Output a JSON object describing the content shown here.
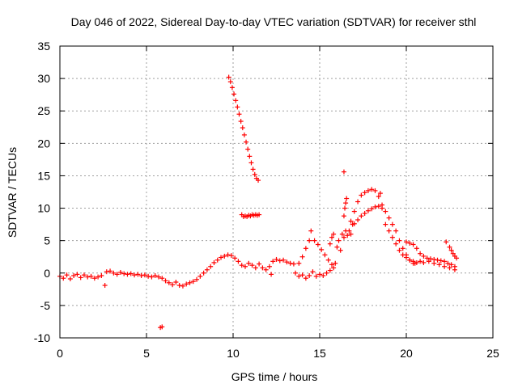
{
  "chart_data": {
    "type": "scatter",
    "title": "Day 046 of 2022, Sidereal Day-to-day VTEC variation (SDTVAR) for receiver sthl",
    "xlabel": "GPS time / hours",
    "ylabel": "SDTVAR / TECUs",
    "xlim": [
      0,
      25
    ],
    "ylim": [
      -10,
      35
    ],
    "xticks": [
      0,
      5,
      10,
      15,
      20,
      25
    ],
    "yticks": [
      -10,
      -5,
      0,
      5,
      10,
      15,
      20,
      25,
      30,
      35
    ],
    "grid": true,
    "marker": "+",
    "series_color": "#ff0000",
    "series": [
      {
        "name": "SDTVAR",
        "points": [
          [
            0.0,
            -0.5
          ],
          [
            0.2,
            -0.8
          ],
          [
            0.4,
            -0.3
          ],
          [
            0.6,
            -0.9
          ],
          [
            0.8,
            -0.4
          ],
          [
            1.0,
            -0.2
          ],
          [
            1.2,
            -0.7
          ],
          [
            1.4,
            -0.3
          ],
          [
            1.6,
            -0.6
          ],
          [
            1.8,
            -0.5
          ],
          [
            2.0,
            -0.8
          ],
          [
            2.2,
            -0.6
          ],
          [
            2.4,
            -0.4
          ],
          [
            2.6,
            -1.9
          ],
          [
            2.7,
            0.2
          ],
          [
            2.9,
            0.3
          ],
          [
            3.1,
            0.0
          ],
          [
            3.3,
            -0.2
          ],
          [
            3.5,
            0.1
          ],
          [
            3.7,
            -0.1
          ],
          [
            3.9,
            -0.2
          ],
          [
            4.1,
            -0.1
          ],
          [
            4.3,
            -0.3
          ],
          [
            4.5,
            -0.2
          ],
          [
            4.7,
            -0.4
          ],
          [
            4.9,
            -0.3
          ],
          [
            5.1,
            -0.5
          ],
          [
            5.3,
            -0.6
          ],
          [
            5.5,
            -0.4
          ],
          [
            5.7,
            -0.6
          ],
          [
            5.9,
            -0.8
          ],
          [
            6.1,
            -1.2
          ],
          [
            6.3,
            -1.5
          ],
          [
            6.5,
            -1.8
          ],
          [
            6.7,
            -1.4
          ],
          [
            6.9,
            -1.9
          ],
          [
            7.1,
            -2.0
          ],
          [
            7.3,
            -1.7
          ],
          [
            7.5,
            -1.5
          ],
          [
            7.7,
            -1.3
          ],
          [
            5.8,
            -8.4
          ],
          [
            5.9,
            -8.3
          ],
          [
            7.9,
            -1.0
          ],
          [
            8.1,
            -0.5
          ],
          [
            8.3,
            0.0
          ],
          [
            8.5,
            0.5
          ],
          [
            8.7,
            1.0
          ],
          [
            8.9,
            1.6
          ],
          [
            9.1,
            2.0
          ],
          [
            9.3,
            2.4
          ],
          [
            9.5,
            2.6
          ],
          [
            9.7,
            2.8
          ],
          [
            9.9,
            2.7
          ],
          [
            10.1,
            2.3
          ],
          [
            10.3,
            1.8
          ],
          [
            10.5,
            1.2
          ],
          [
            10.7,
            1.0
          ],
          [
            10.9,
            1.5
          ],
          [
            11.1,
            1.2
          ],
          [
            11.3,
            0.8
          ],
          [
            11.5,
            1.4
          ],
          [
            11.7,
            0.8
          ],
          [
            11.9,
            0.5
          ],
          [
            12.1,
            1.0
          ],
          [
            12.3,
            1.8
          ],
          [
            12.5,
            2.1
          ],
          [
            12.7,
            1.9
          ],
          [
            12.9,
            2.0
          ],
          [
            13.1,
            1.7
          ],
          [
            13.3,
            1.5
          ],
          [
            13.5,
            1.4
          ],
          [
            12.2,
            -0.2
          ],
          [
            9.75,
            30.2
          ],
          [
            9.85,
            29.5
          ],
          [
            9.95,
            28.6
          ],
          [
            10.05,
            27.6
          ],
          [
            10.15,
            26.6
          ],
          [
            10.25,
            25.6
          ],
          [
            10.35,
            24.5
          ],
          [
            10.45,
            23.4
          ],
          [
            10.55,
            22.4
          ],
          [
            10.65,
            21.3
          ],
          [
            10.75,
            20.2
          ],
          [
            10.85,
            19.1
          ],
          [
            10.95,
            18.0
          ],
          [
            11.05,
            17.0
          ],
          [
            11.15,
            16.0
          ],
          [
            11.25,
            15.2
          ],
          [
            11.35,
            14.6
          ],
          [
            11.45,
            14.3
          ],
          [
            10.5,
            9.0
          ],
          [
            10.6,
            8.7
          ],
          [
            10.7,
            8.8
          ],
          [
            10.8,
            8.7
          ],
          [
            10.9,
            8.9
          ],
          [
            11.0,
            8.8
          ],
          [
            11.1,
            9.0
          ],
          [
            11.2,
            8.9
          ],
          [
            11.3,
            9.0
          ],
          [
            11.4,
            8.9
          ],
          [
            11.5,
            9.0
          ],
          [
            13.6,
            0.0
          ],
          [
            13.8,
            -0.5
          ],
          [
            14.0,
            -0.3
          ],
          [
            14.2,
            -0.8
          ],
          [
            14.4,
            -0.4
          ],
          [
            14.6,
            0.2
          ],
          [
            14.8,
            -0.5
          ],
          [
            15.0,
            -0.2
          ],
          [
            15.2,
            -0.4
          ],
          [
            15.4,
            0.0
          ],
          [
            15.6,
            0.4
          ],
          [
            15.8,
            0.8
          ],
          [
            13.8,
            1.5
          ],
          [
            14.0,
            2.5
          ],
          [
            14.2,
            3.8
          ],
          [
            14.4,
            5.0
          ],
          [
            14.5,
            6.5
          ],
          [
            14.7,
            5.0
          ],
          [
            14.9,
            4.4
          ],
          [
            15.1,
            3.6
          ],
          [
            15.3,
            2.8
          ],
          [
            15.5,
            2.0
          ],
          [
            15.7,
            1.3
          ],
          [
            15.9,
            1.5
          ],
          [
            15.6,
            4.5
          ],
          [
            15.7,
            5.5
          ],
          [
            15.8,
            6.0
          ],
          [
            16.0,
            4.0
          ],
          [
            16.1,
            5.0
          ],
          [
            16.2,
            3.5
          ],
          [
            16.3,
            6.0
          ],
          [
            16.4,
            5.5
          ],
          [
            16.5,
            6.5
          ],
          [
            16.6,
            5.8
          ],
          [
            16.7,
            6.5
          ],
          [
            16.8,
            6.0
          ],
          [
            16.9,
            7.5
          ],
          [
            16.4,
            8.8
          ],
          [
            16.45,
            10.0
          ],
          [
            16.5,
            10.8
          ],
          [
            16.55,
            11.5
          ],
          [
            16.4,
            15.6
          ],
          [
            16.8,
            8.0
          ],
          [
            17.0,
            9.5
          ],
          [
            17.2,
            11.0
          ],
          [
            17.4,
            12.0
          ],
          [
            17.6,
            12.4
          ],
          [
            17.8,
            12.7
          ],
          [
            18.0,
            12.9
          ],
          [
            18.2,
            12.7
          ],
          [
            18.4,
            11.8
          ],
          [
            18.6,
            10.5
          ],
          [
            18.8,
            9.5
          ],
          [
            19.0,
            8.5
          ],
          [
            19.2,
            7.5
          ],
          [
            19.4,
            6.5
          ],
          [
            19.6,
            5.0
          ],
          [
            19.8,
            3.8
          ],
          [
            20.0,
            2.8
          ],
          [
            20.2,
            2.0
          ],
          [
            20.4,
            1.5
          ],
          [
            17.0,
            7.6
          ],
          [
            17.2,
            8.2
          ],
          [
            17.4,
            8.8
          ],
          [
            17.6,
            9.2
          ],
          [
            17.8,
            9.6
          ],
          [
            18.0,
            9.9
          ],
          [
            18.2,
            10.2
          ],
          [
            18.4,
            10.3
          ],
          [
            18.6,
            10.0
          ],
          [
            18.5,
            12.3
          ],
          [
            18.8,
            7.5
          ],
          [
            19.0,
            6.5
          ],
          [
            19.2,
            5.5
          ],
          [
            19.4,
            4.5
          ],
          [
            19.6,
            3.5
          ],
          [
            19.8,
            2.8
          ],
          [
            20.0,
            2.4
          ],
          [
            20.2,
            2.0
          ],
          [
            20.4,
            1.8
          ],
          [
            20.6,
            1.6
          ],
          [
            20.0,
            4.8
          ],
          [
            20.2,
            4.6
          ],
          [
            20.4,
            4.4
          ],
          [
            20.6,
            3.8
          ],
          [
            20.8,
            3.0
          ],
          [
            21.0,
            2.6
          ],
          [
            21.2,
            2.3
          ],
          [
            21.4,
            2.2
          ],
          [
            21.6,
            2.1
          ],
          [
            21.8,
            2.0
          ],
          [
            22.0,
            1.9
          ],
          [
            22.2,
            1.8
          ],
          [
            22.4,
            1.5
          ],
          [
            22.6,
            1.3
          ],
          [
            22.8,
            1.0
          ],
          [
            20.5,
            1.5
          ],
          [
            20.8,
            1.8
          ],
          [
            21.0,
            1.6
          ],
          [
            21.3,
            1.8
          ],
          [
            21.6,
            1.5
          ],
          [
            21.9,
            1.3
          ],
          [
            22.2,
            1.0
          ],
          [
            22.5,
            0.8
          ],
          [
            22.8,
            0.5
          ],
          [
            22.3,
            4.8
          ],
          [
            22.5,
            4.0
          ],
          [
            22.6,
            3.5
          ],
          [
            22.7,
            3.0
          ],
          [
            22.8,
            2.6
          ],
          [
            22.9,
            2.3
          ]
        ]
      }
    ]
  }
}
